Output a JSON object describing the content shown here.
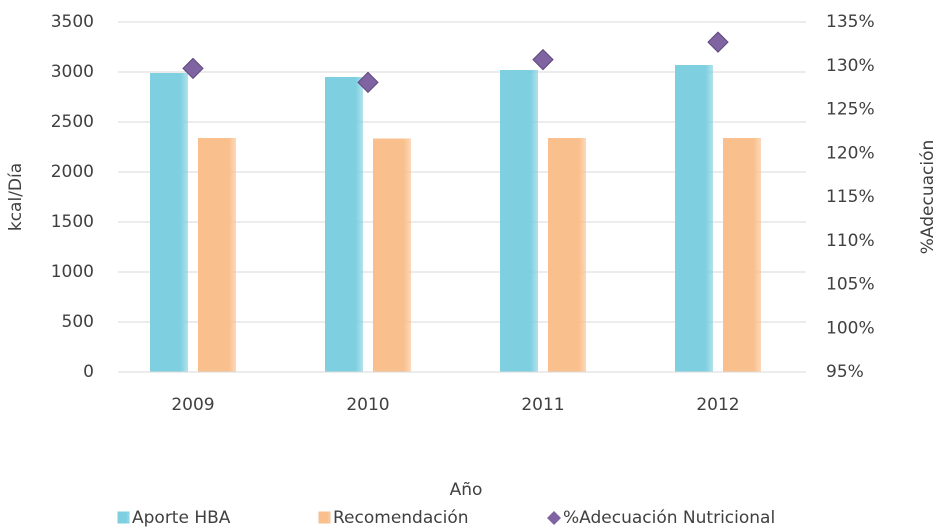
{
  "chart_data": {
    "type": "bar",
    "categories": [
      "2009",
      "2010",
      "2011",
      "2012"
    ],
    "x_label": "Año",
    "y_label": "kcal/Día",
    "y2_label": "%Adecuación",
    "series": [
      {
        "name": "Aporte HBA",
        "color": "#7ecfe0",
        "type": "bar",
        "values": [
          2990,
          2950,
          3020,
          3070
        ]
      },
      {
        "name": "Recomendación",
        "color": "#f9bf8c",
        "type": "bar",
        "values": [
          2340,
          2335,
          2340,
          2340
        ]
      },
      {
        "name": "%Adecuación Nutricional",
        "color": "#8064a2",
        "type": "scatter",
        "axis": "y2",
        "values": [
          129.7,
          128.1,
          130.7,
          132.7
        ]
      }
    ],
    "ylim": [
      0,
      3500
    ],
    "yticks": [
      0,
      500,
      1000,
      1500,
      2000,
      2500,
      3000,
      3500
    ],
    "y2lim": [
      95,
      135
    ],
    "y2ticks": [
      {
        "value": 95,
        "label": "95%"
      },
      {
        "value": 100,
        "label": "100%"
      },
      {
        "value": 105,
        "label": "105%"
      },
      {
        "value": 110,
        "label": "110%"
      },
      {
        "value": 115,
        "label": "115%"
      },
      {
        "value": 120,
        "label": "120%"
      },
      {
        "value": 125,
        "label": "125%"
      },
      {
        "value": 130,
        "label": "130%"
      },
      {
        "value": 135,
        "label": "135%"
      }
    ],
    "grid": true,
    "legend": "bottom"
  }
}
